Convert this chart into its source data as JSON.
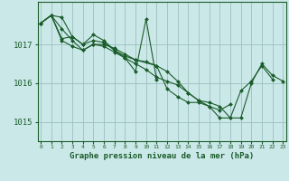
{
  "title": "Graphe pression niveau de la mer (hPa)",
  "background_color": "#cbe8e8",
  "grid_color": "#9dbfbf",
  "line_color": "#1a5c2a",
  "marker_color": "#1a5c2a",
  "x_ticks": [
    0,
    1,
    2,
    3,
    4,
    5,
    6,
    7,
    8,
    9,
    10,
    11,
    12,
    13,
    14,
    15,
    16,
    17,
    18,
    19,
    20,
    21,
    22,
    23
  ],
  "y_ticks": [
    1015,
    1016,
    1017
  ],
  "ylim": [
    1014.5,
    1018.1
  ],
  "xlim": [
    -0.3,
    23.3
  ],
  "series": [
    [
      1017.55,
      1017.75,
      1017.7,
      1017.2,
      1017.0,
      1017.1,
      1017.05,
      1016.85,
      1016.7,
      1016.6,
      null,
      1016.45,
      1016.3,
      1016.05,
      1015.75,
      1015.55,
      1015.5,
      1015.4,
      1015.1,
      1015.1,
      1016.0,
      1016.5,
      1016.2,
      1016.05
    ],
    [
      1017.55,
      1017.75,
      1017.4,
      1017.1,
      1016.85,
      1017.0,
      1017.0,
      1016.9,
      1016.75,
      1016.6,
      1016.55,
      1016.45,
      1015.85,
      1015.65,
      1015.5,
      1015.5,
      1015.4,
      1015.1,
      1015.1,
      1015.8,
      1016.05,
      1016.45,
      1016.1,
      null
    ],
    [
      1017.55,
      1017.75,
      1017.15,
      1017.2,
      1017.0,
      1017.25,
      1017.1,
      1016.85,
      1016.65,
      1016.3,
      1017.65,
      1016.1,
      null,
      null,
      null,
      null,
      null,
      null,
      null,
      null,
      null,
      null,
      null,
      null
    ],
    [
      1017.55,
      1017.75,
      1017.1,
      1016.95,
      1016.85,
      1017.0,
      1016.95,
      1016.8,
      1016.65,
      1016.5,
      1016.35,
      1016.15,
      1016.05,
      1015.95,
      1015.75,
      1015.55,
      1015.4,
      1015.3,
      1015.45,
      null,
      null,
      null,
      null,
      null
    ]
  ]
}
